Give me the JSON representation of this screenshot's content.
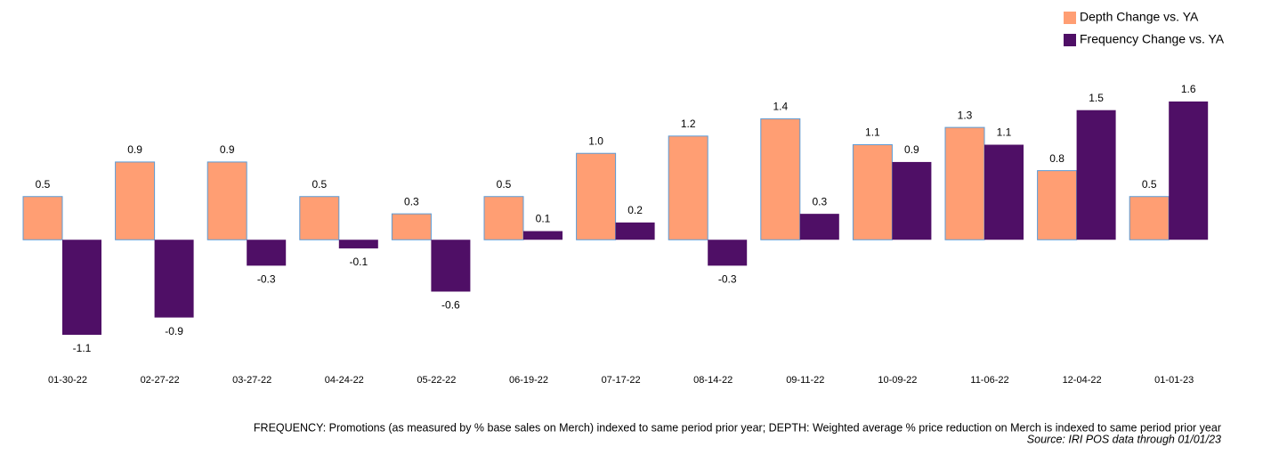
{
  "chart_data": {
    "type": "bar",
    "categories": [
      "01-30-22",
      "02-27-22",
      "03-27-22",
      "04-24-22",
      "05-22-22",
      "06-19-22",
      "07-17-22",
      "08-14-22",
      "09-11-22",
      "10-09-22",
      "11-06-22",
      "12-04-22",
      "01-01-23"
    ],
    "series": [
      {
        "name": "Depth Change vs. YA",
        "color": "#ff9e73",
        "values": [
          0.5,
          0.9,
          0.9,
          0.5,
          0.3,
          0.5,
          1.0,
          1.2,
          1.4,
          1.1,
          1.3,
          0.8,
          0.5
        ],
        "value_labels": [
          "0.5",
          "0.9",
          "0.9",
          "0.5",
          "0.3",
          "0.5",
          "1.0",
          "1.2",
          "1.4",
          "1.1",
          "1.3",
          "0.8",
          "0.5"
        ]
      },
      {
        "name": "Frequency Change vs. YA",
        "color": "#4f0f66",
        "values": [
          -1.1,
          -0.9,
          -0.3,
          -0.1,
          -0.6,
          0.1,
          0.2,
          -0.3,
          0.3,
          0.9,
          1.1,
          1.5,
          1.6
        ],
        "value_labels": [
          "-1.1",
          "-0.9",
          "-0.3",
          "-0.1",
          "-0.6",
          "0.1",
          "0.2",
          "-0.3",
          "0.3",
          "0.9",
          "1.1",
          "1.5",
          "1.6"
        ]
      }
    ],
    "legend": "top-right",
    "footnote": "FREQUENCY: Promotions (as measured by % base sales on Merch) indexed to same period prior year; DEPTH: Weighted average % price reduction on Merch is indexed to same period prior year",
    "source": "Source: IRI POS data through 01/01/23"
  }
}
